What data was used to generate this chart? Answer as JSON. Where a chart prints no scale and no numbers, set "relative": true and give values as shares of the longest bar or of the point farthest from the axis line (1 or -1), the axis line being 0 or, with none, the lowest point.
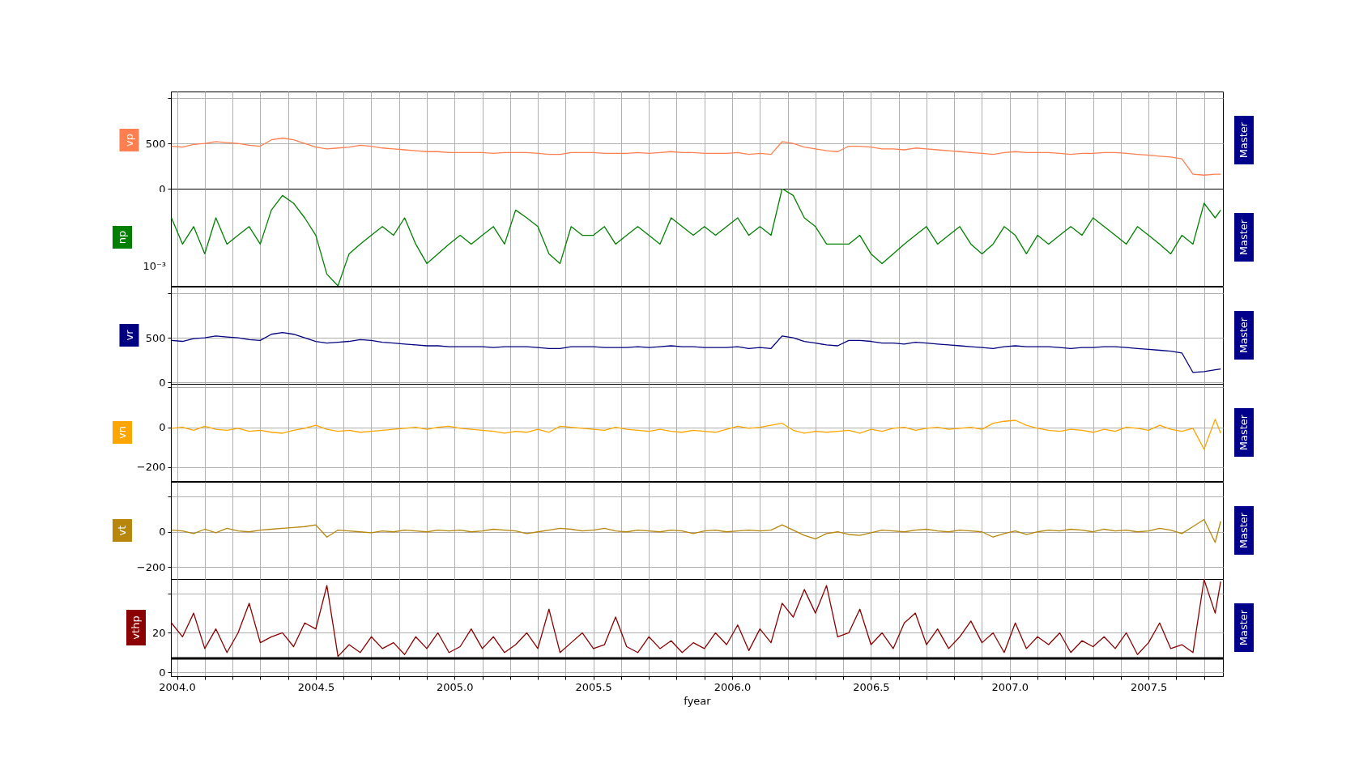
{
  "chart_data": [
    {
      "type": "line",
      "ylabel": "vp",
      "annotations": [
        "Master"
      ],
      "grid": true,
      "tick_labels": "y",
      "xlim": [
        2003.978,
        2007.768
      ],
      "ylim": [
        0,
        1075
      ],
      "yticks": [
        0,
        500,
        {
          "value": 1000,
          "label": null
        }
      ],
      "xticks": [
        {
          "value": 2004,
          "label": null
        },
        {
          "value": 2004.1,
          "label": null
        },
        {
          "value": 2004.2,
          "label": null
        },
        {
          "value": 2004.3,
          "label": null
        },
        {
          "value": 2004.4,
          "label": null
        },
        {
          "value": 2004.5,
          "label": null
        },
        {
          "value": 2004.6,
          "label": null
        },
        {
          "value": 2004.7,
          "label": null
        },
        {
          "value": 2004.8,
          "label": null
        },
        {
          "value": 2004.9,
          "label": null
        },
        {
          "value": 2005,
          "label": null
        },
        {
          "value": 2005.1,
          "label": null
        },
        {
          "value": 2005.2,
          "label": null
        },
        {
          "value": 2005.3,
          "label": null
        },
        {
          "value": 2005.4,
          "label": null
        },
        {
          "value": 2005.5,
          "label": null
        },
        {
          "value": 2005.6,
          "label": null
        },
        {
          "value": 2005.7,
          "label": null
        },
        {
          "value": 2005.8,
          "label": null
        },
        {
          "value": 2005.9,
          "label": null
        },
        {
          "value": 2006,
          "label": null
        },
        {
          "value": 2006.1,
          "label": null
        },
        {
          "value": 2006.2,
          "label": null
        },
        {
          "value": 2006.3,
          "label": null
        },
        {
          "value": 2006.4,
          "label": null
        },
        {
          "value": 2006.5,
          "label": null
        },
        {
          "value": 2006.6,
          "label": null
        },
        {
          "value": 2006.7,
          "label": null
        },
        {
          "value": 2006.8,
          "label": null
        },
        {
          "value": 2006.9,
          "label": null
        },
        {
          "value": 2007,
          "label": null
        },
        {
          "value": 2007.1,
          "label": null
        },
        {
          "value": 2007.2,
          "label": null
        },
        {
          "value": 2007.3,
          "label": null
        },
        {
          "value": 2007.4,
          "label": null
        },
        {
          "value": 2007.5,
          "label": null
        },
        {
          "value": 2007.6,
          "label": null
        },
        {
          "value": 2007.7,
          "label": null
        }
      ],
      "x": [
        2003.98,
        2004.02,
        2004.06,
        2004.1,
        2004.14,
        2004.18,
        2004.22,
        2004.26,
        2004.3,
        2004.34,
        2004.38,
        2004.42,
        2004.46,
        2004.5,
        2004.54,
        2004.58,
        2004.62,
        2004.66,
        2004.7,
        2004.74,
        2004.78,
        2004.82,
        2004.86,
        2004.9,
        2004.94,
        2004.98,
        2005.02,
        2005.06,
        2005.1,
        2005.14,
        2005.18,
        2005.22,
        2005.26,
        2005.3,
        2005.34,
        2005.38,
        2005.42,
        2005.46,
        2005.5,
        2005.54,
        2005.58,
        2005.62,
        2005.66,
        2005.7,
        2005.74,
        2005.78,
        2005.82,
        2005.86,
        2005.9,
        2005.94,
        2005.98,
        2006.02,
        2006.06,
        2006.1,
        2006.14,
        2006.18,
        2006.22,
        2006.26,
        2006.3,
        2006.34,
        2006.38,
        2006.42,
        2006.46,
        2006.5,
        2006.54,
        2006.58,
        2006.62,
        2006.66,
        2006.7,
        2006.74,
        2006.78,
        2006.82,
        2006.86,
        2006.9,
        2006.94,
        2006.98,
        2007.02,
        2007.06,
        2007.1,
        2007.14,
        2007.18,
        2007.22,
        2007.26,
        2007.3,
        2007.34,
        2007.38,
        2007.42,
        2007.46,
        2007.5,
        2007.54,
        2007.58,
        2007.62,
        2007.66,
        2007.7,
        2007.74,
        2007.76
      ],
      "series": [
        {
          "color": "#ff7f50",
          "values": [
            470,
            460,
            490,
            500,
            520,
            510,
            500,
            480,
            470,
            540,
            560,
            540,
            500,
            460,
            440,
            450,
            460,
            480,
            470,
            450,
            440,
            430,
            420,
            410,
            410,
            400,
            400,
            400,
            400,
            390,
            400,
            400,
            400,
            390,
            380,
            380,
            400,
            400,
            400,
            390,
            390,
            390,
            400,
            390,
            400,
            410,
            400,
            400,
            390,
            390,
            390,
            400,
            380,
            390,
            380,
            520,
            500,
            460,
            440,
            420,
            410,
            470,
            470,
            460,
            440,
            440,
            430,
            450,
            440,
            430,
            420,
            410,
            400,
            390,
            380,
            400,
            410,
            400,
            400,
            400,
            390,
            380,
            390,
            390,
            400,
            400,
            390,
            380,
            370,
            360,
            350,
            330,
            160,
            150,
            160,
            160
          ]
        }
      ]
    },
    {
      "type": "line",
      "ylabel": "np",
      "annotations": [
        "Master",
        "10⁻³"
      ],
      "grid": "x",
      "tick_labels": "y",
      "relative": true,
      "xlim": [
        2003.978,
        2007.768
      ],
      "xticks": [
        {
          "value": 2004,
          "label": null
        },
        {
          "value": 2004.1,
          "label": null
        },
        {
          "value": 2004.2,
          "label": null
        },
        {
          "value": 2004.3,
          "label": null
        },
        {
          "value": 2004.4,
          "label": null
        },
        {
          "value": 2004.5,
          "label": null
        },
        {
          "value": 2004.6,
          "label": null
        },
        {
          "value": 2004.7,
          "label": null
        },
        {
          "value": 2004.8,
          "label": null
        },
        {
          "value": 2004.9,
          "label": null
        },
        {
          "value": 2005,
          "label": null
        },
        {
          "value": 2005.1,
          "label": null
        },
        {
          "value": 2005.2,
          "label": null
        },
        {
          "value": 2005.3,
          "label": null
        },
        {
          "value": 2005.4,
          "label": null
        },
        {
          "value": 2005.5,
          "label": null
        },
        {
          "value": 2005.6,
          "label": null
        },
        {
          "value": 2005.7,
          "label": null
        },
        {
          "value": 2005.8,
          "label": null
        },
        {
          "value": 2005.9,
          "label": null
        },
        {
          "value": 2006,
          "label": null
        },
        {
          "value": 2006.1,
          "label": null
        },
        {
          "value": 2006.2,
          "label": null
        },
        {
          "value": 2006.3,
          "label": null
        },
        {
          "value": 2006.4,
          "label": null
        },
        {
          "value": 2006.5,
          "label": null
        },
        {
          "value": 2006.6,
          "label": null
        },
        {
          "value": 2006.7,
          "label": null
        },
        {
          "value": 2006.8,
          "label": null
        },
        {
          "value": 2006.9,
          "label": null
        },
        {
          "value": 2007,
          "label": null
        },
        {
          "value": 2007.1,
          "label": null
        },
        {
          "value": 2007.2,
          "label": null
        },
        {
          "value": 2007.3,
          "label": null
        },
        {
          "value": 2007.4,
          "label": null
        },
        {
          "value": 2007.5,
          "label": null
        },
        {
          "value": 2007.6,
          "label": null
        },
        {
          "value": 2007.7,
          "label": null
        }
      ],
      "x": [
        2003.98,
        2004.02,
        2004.06,
        2004.1,
        2004.14,
        2004.18,
        2004.22,
        2004.26,
        2004.3,
        2004.34,
        2004.38,
        2004.42,
        2004.46,
        2004.5,
        2004.54,
        2004.58,
        2004.62,
        2004.66,
        2004.7,
        2004.74,
        2004.78,
        2004.82,
        2004.86,
        2004.9,
        2004.94,
        2004.98,
        2005.02,
        2005.06,
        2005.1,
        2005.14,
        2005.18,
        2005.22,
        2005.26,
        2005.3,
        2005.34,
        2005.38,
        2005.42,
        2005.46,
        2005.5,
        2005.54,
        2005.58,
        2005.62,
        2005.66,
        2005.7,
        2005.74,
        2005.78,
        2005.82,
        2005.86,
        2005.9,
        2005.94,
        2005.98,
        2006.02,
        2006.06,
        2006.1,
        2006.14,
        2006.18,
        2006.22,
        2006.26,
        2006.3,
        2006.34,
        2006.38,
        2006.42,
        2006.46,
        2006.5,
        2006.54,
        2006.58,
        2006.62,
        2006.66,
        2006.7,
        2006.74,
        2006.78,
        2006.82,
        2006.86,
        2006.9,
        2006.94,
        2006.98,
        2007.02,
        2007.06,
        2007.1,
        2007.14,
        2007.18,
        2007.22,
        2007.26,
        2007.3,
        2007.34,
        2007.38,
        2007.42,
        2007.46,
        2007.5,
        2007.54,
        2007.58,
        2007.62,
        2007.66,
        2007.7,
        2007.74,
        2007.76
      ],
      "series": [
        {
          "color": "#008000",
          "values": [
            0.7,
            0.43,
            0.61,
            0.33,
            0.7,
            0.43,
            0.52,
            0.61,
            0.43,
            0.78,
            0.93,
            0.85,
            0.7,
            0.52,
            0.12,
            0,
            0.33,
            0.43,
            0.52,
            0.61,
            0.52,
            0.7,
            0.43,
            0.23,
            0.33,
            0.43,
            0.52,
            0.43,
            0.52,
            0.61,
            0.43,
            0.78,
            0.7,
            0.61,
            0.33,
            0.23,
            0.61,
            0.52,
            0.52,
            0.61,
            0.43,
            0.52,
            0.61,
            0.52,
            0.43,
            0.7,
            0.61,
            0.52,
            0.61,
            0.52,
            0.61,
            0.7,
            0.52,
            0.61,
            0.52,
            1,
            0.93,
            0.7,
            0.61,
            0.43,
            0.43,
            0.43,
            0.52,
            0.33,
            0.23,
            0.33,
            0.43,
            0.52,
            0.61,
            0.43,
            0.52,
            0.61,
            0.43,
            0.33,
            0.43,
            0.61,
            0.52,
            0.33,
            0.52,
            0.43,
            0.52,
            0.61,
            0.52,
            0.7,
            0.61,
            0.52,
            0.43,
            0.61,
            0.52,
            0.43,
            0.33,
            0.52,
            0.43,
            0.85,
            0.7,
            0.78
          ]
        }
      ]
    },
    {
      "type": "line",
      "ylabel": "vr",
      "annotations": [
        "Master"
      ],
      "grid": true,
      "tick_labels": "y",
      "xlim": [
        2003.978,
        2007.768
      ],
      "ylim": [
        -18,
        1075
      ],
      "yticks": [
        0,
        500,
        {
          "value": 1000,
          "label": null
        }
      ],
      "xticks": [
        {
          "value": 2004,
          "label": null
        },
        {
          "value": 2004.1,
          "label": null
        },
        {
          "value": 2004.2,
          "label": null
        },
        {
          "value": 2004.3,
          "label": null
        },
        {
          "value": 2004.4,
          "label": null
        },
        {
          "value": 2004.5,
          "label": null
        },
        {
          "value": 2004.6,
          "label": null
        },
        {
          "value": 2004.7,
          "label": null
        },
        {
          "value": 2004.8,
          "label": null
        },
        {
          "value": 2004.9,
          "label": null
        },
        {
          "value": 2005,
          "label": null
        },
        {
          "value": 2005.1,
          "label": null
        },
        {
          "value": 2005.2,
          "label": null
        },
        {
          "value": 2005.3,
          "label": null
        },
        {
          "value": 2005.4,
          "label": null
        },
        {
          "value": 2005.5,
          "label": null
        },
        {
          "value": 2005.6,
          "label": null
        },
        {
          "value": 2005.7,
          "label": null
        },
        {
          "value": 2005.8,
          "label": null
        },
        {
          "value": 2005.9,
          "label": null
        },
        {
          "value": 2006,
          "label": null
        },
        {
          "value": 2006.1,
          "label": null
        },
        {
          "value": 2006.2,
          "label": null
        },
        {
          "value": 2006.3,
          "label": null
        },
        {
          "value": 2006.4,
          "label": null
        },
        {
          "value": 2006.5,
          "label": null
        },
        {
          "value": 2006.6,
          "label": null
        },
        {
          "value": 2006.7,
          "label": null
        },
        {
          "value": 2006.8,
          "label": null
        },
        {
          "value": 2006.9,
          "label": null
        },
        {
          "value": 2007,
          "label": null
        },
        {
          "value": 2007.1,
          "label": null
        },
        {
          "value": 2007.2,
          "label": null
        },
        {
          "value": 2007.3,
          "label": null
        },
        {
          "value": 2007.4,
          "label": null
        },
        {
          "value": 2007.5,
          "label": null
        },
        {
          "value": 2007.6,
          "label": null
        },
        {
          "value": 2007.7,
          "label": null
        }
      ],
      "x": [
        2003.98,
        2004.02,
        2004.06,
        2004.1,
        2004.14,
        2004.18,
        2004.22,
        2004.26,
        2004.3,
        2004.34,
        2004.38,
        2004.42,
        2004.46,
        2004.5,
        2004.54,
        2004.58,
        2004.62,
        2004.66,
        2004.7,
        2004.74,
        2004.78,
        2004.82,
        2004.86,
        2004.9,
        2004.94,
        2004.98,
        2005.02,
        2005.06,
        2005.1,
        2005.14,
        2005.18,
        2005.22,
        2005.26,
        2005.3,
        2005.34,
        2005.38,
        2005.42,
        2005.46,
        2005.5,
        2005.54,
        2005.58,
        2005.62,
        2005.66,
        2005.7,
        2005.74,
        2005.78,
        2005.82,
        2005.86,
        2005.9,
        2005.94,
        2005.98,
        2006.02,
        2006.06,
        2006.1,
        2006.14,
        2006.18,
        2006.22,
        2006.26,
        2006.3,
        2006.34,
        2006.38,
        2006.42,
        2006.46,
        2006.5,
        2006.54,
        2006.58,
        2006.62,
        2006.66,
        2006.7,
        2006.74,
        2006.78,
        2006.82,
        2006.86,
        2006.9,
        2006.94,
        2006.98,
        2007.02,
        2007.06,
        2007.1,
        2007.14,
        2007.18,
        2007.22,
        2007.26,
        2007.3,
        2007.34,
        2007.38,
        2007.42,
        2007.46,
        2007.5,
        2007.54,
        2007.58,
        2007.62,
        2007.66,
        2007.7,
        2007.74,
        2007.76
      ],
      "series": [
        {
          "color": "#000080",
          "values": [
            470,
            460,
            490,
            500,
            520,
            510,
            500,
            480,
            470,
            540,
            560,
            540,
            500,
            460,
            440,
            450,
            460,
            480,
            470,
            450,
            440,
            430,
            420,
            410,
            410,
            400,
            400,
            400,
            400,
            390,
            400,
            400,
            400,
            390,
            380,
            380,
            400,
            400,
            400,
            390,
            390,
            390,
            400,
            390,
            400,
            410,
            400,
            400,
            390,
            390,
            390,
            400,
            380,
            390,
            380,
            520,
            500,
            460,
            440,
            420,
            410,
            470,
            470,
            460,
            440,
            440,
            430,
            450,
            440,
            430,
            420,
            410,
            400,
            390,
            380,
            400,
            410,
            400,
            400,
            400,
            390,
            380,
            390,
            390,
            400,
            400,
            390,
            380,
            370,
            360,
            350,
            330,
            110,
            120,
            140,
            150
          ]
        }
      ]
    },
    {
      "type": "line",
      "ylabel": "vn",
      "annotations": [
        "Master"
      ],
      "grid": true,
      "tick_labels": "y",
      "xlim": [
        2003.978,
        2007.768
      ],
      "ylim": [
        -270,
        218
      ],
      "yticks": [
        {
          "value": -200,
          "label": "−200"
        },
        0,
        {
          "value": 200,
          "label": null
        }
      ],
      "xticks": [
        {
          "value": 2004,
          "label": null
        },
        {
          "value": 2004.1,
          "label": null
        },
        {
          "value": 2004.2,
          "label": null
        },
        {
          "value": 2004.3,
          "label": null
        },
        {
          "value": 2004.4,
          "label": null
        },
        {
          "value": 2004.5,
          "label": null
        },
        {
          "value": 2004.6,
          "label": null
        },
        {
          "value": 2004.7,
          "label": null
        },
        {
          "value": 2004.8,
          "label": null
        },
        {
          "value": 2004.9,
          "label": null
        },
        {
          "value": 2005,
          "label": null
        },
        {
          "value": 2005.1,
          "label": null
        },
        {
          "value": 2005.2,
          "label": null
        },
        {
          "value": 2005.3,
          "label": null
        },
        {
          "value": 2005.4,
          "label": null
        },
        {
          "value": 2005.5,
          "label": null
        },
        {
          "value": 2005.6,
          "label": null
        },
        {
          "value": 2005.7,
          "label": null
        },
        {
          "value": 2005.8,
          "label": null
        },
        {
          "value": 2005.9,
          "label": null
        },
        {
          "value": 2006,
          "label": null
        },
        {
          "value": 2006.1,
          "label": null
        },
        {
          "value": 2006.2,
          "label": null
        },
        {
          "value": 2006.3,
          "label": null
        },
        {
          "value": 2006.4,
          "label": null
        },
        {
          "value": 2006.5,
          "label": null
        },
        {
          "value": 2006.6,
          "label": null
        },
        {
          "value": 2006.7,
          "label": null
        },
        {
          "value": 2006.8,
          "label": null
        },
        {
          "value": 2006.9,
          "label": null
        },
        {
          "value": 2007,
          "label": null
        },
        {
          "value": 2007.1,
          "label": null
        },
        {
          "value": 2007.2,
          "label": null
        },
        {
          "value": 2007.3,
          "label": null
        },
        {
          "value": 2007.4,
          "label": null
        },
        {
          "value": 2007.5,
          "label": null
        },
        {
          "value": 2007.6,
          "label": null
        },
        {
          "value": 2007.7,
          "label": null
        }
      ],
      "x": [
        2003.98,
        2004.02,
        2004.06,
        2004.1,
        2004.14,
        2004.18,
        2004.22,
        2004.26,
        2004.3,
        2004.34,
        2004.38,
        2004.42,
        2004.46,
        2004.5,
        2004.54,
        2004.58,
        2004.62,
        2004.66,
        2004.7,
        2004.74,
        2004.78,
        2004.82,
        2004.86,
        2004.9,
        2004.94,
        2004.98,
        2005.02,
        2005.06,
        2005.1,
        2005.14,
        2005.18,
        2005.22,
        2005.26,
        2005.3,
        2005.34,
        2005.38,
        2005.42,
        2005.46,
        2005.5,
        2005.54,
        2005.58,
        2005.62,
        2005.66,
        2005.7,
        2005.74,
        2005.78,
        2005.82,
        2005.86,
        2005.9,
        2005.94,
        2005.98,
        2006.02,
        2006.06,
        2006.1,
        2006.14,
        2006.18,
        2006.22,
        2006.26,
        2006.3,
        2006.34,
        2006.38,
        2006.42,
        2006.46,
        2006.5,
        2006.54,
        2006.58,
        2006.62,
        2006.66,
        2006.7,
        2006.74,
        2006.78,
        2006.82,
        2006.86,
        2006.9,
        2006.94,
        2006.98,
        2007.02,
        2007.06,
        2007.1,
        2007.14,
        2007.18,
        2007.22,
        2007.26,
        2007.3,
        2007.34,
        2007.38,
        2007.42,
        2007.46,
        2007.5,
        2007.54,
        2007.58,
        2007.62,
        2007.66,
        2007.7,
        2007.74,
        2007.76
      ],
      "series": [
        {
          "color": "#ffa500",
          "values": [
            -5,
            0,
            -15,
            5,
            -10,
            -15,
            -5,
            -20,
            -15,
            -25,
            -30,
            -15,
            -5,
            10,
            -10,
            -20,
            -15,
            -25,
            -20,
            -15,
            -10,
            -5,
            0,
            -10,
            0,
            5,
            -5,
            -10,
            -15,
            -20,
            -30,
            -20,
            -25,
            -10,
            -25,
            5,
            0,
            -5,
            -10,
            -15,
            0,
            -10,
            -15,
            -20,
            -10,
            -20,
            -25,
            -15,
            -20,
            -25,
            -10,
            5,
            -5,
            0,
            10,
            20,
            -15,
            -30,
            -20,
            -25,
            -20,
            -15,
            -30,
            -10,
            -20,
            -5,
            0,
            -15,
            -5,
            0,
            -10,
            -5,
            0,
            -10,
            20,
            30,
            35,
            10,
            -5,
            -15,
            -20,
            -10,
            -15,
            -25,
            -10,
            -20,
            0,
            -5,
            -15,
            10,
            -10,
            -20,
            -5,
            -110,
            40,
            -30
          ]
        }
      ]
    },
    {
      "type": "line",
      "ylabel": "vt",
      "annotations": [
        "Master"
      ],
      "grid": true,
      "tick_labels": "y",
      "xlim": [
        2003.978,
        2007.768
      ],
      "ylim": [
        -269,
        285
      ],
      "yticks": [
        {
          "value": -200,
          "label": "−200"
        },
        0,
        {
          "value": 200,
          "label": null
        }
      ],
      "xticks": [
        {
          "value": 2004,
          "label": null
        },
        {
          "value": 2004.1,
          "label": null
        },
        {
          "value": 2004.2,
          "label": null
        },
        {
          "value": 2004.3,
          "label": null
        },
        {
          "value": 2004.4,
          "label": null
        },
        {
          "value": 2004.5,
          "label": null
        },
        {
          "value": 2004.6,
          "label": null
        },
        {
          "value": 2004.7,
          "label": null
        },
        {
          "value": 2004.8,
          "label": null
        },
        {
          "value": 2004.9,
          "label": null
        },
        {
          "value": 2005,
          "label": null
        },
        {
          "value": 2005.1,
          "label": null
        },
        {
          "value": 2005.2,
          "label": null
        },
        {
          "value": 2005.3,
          "label": null
        },
        {
          "value": 2005.4,
          "label": null
        },
        {
          "value": 2005.5,
          "label": null
        },
        {
          "value": 2005.6,
          "label": null
        },
        {
          "value": 2005.7,
          "label": null
        },
        {
          "value": 2005.8,
          "label": null
        },
        {
          "value": 2005.9,
          "label": null
        },
        {
          "value": 2006,
          "label": null
        },
        {
          "value": 2006.1,
          "label": null
        },
        {
          "value": 2006.2,
          "label": null
        },
        {
          "value": 2006.3,
          "label": null
        },
        {
          "value": 2006.4,
          "label": null
        },
        {
          "value": 2006.5,
          "label": null
        },
        {
          "value": 2006.6,
          "label": null
        },
        {
          "value": 2006.7,
          "label": null
        },
        {
          "value": 2006.8,
          "label": null
        },
        {
          "value": 2006.9,
          "label": null
        },
        {
          "value": 2007,
          "label": null
        },
        {
          "value": 2007.1,
          "label": null
        },
        {
          "value": 2007.2,
          "label": null
        },
        {
          "value": 2007.3,
          "label": null
        },
        {
          "value": 2007.4,
          "label": null
        },
        {
          "value": 2007.5,
          "label": null
        },
        {
          "value": 2007.6,
          "label": null
        },
        {
          "value": 2007.7,
          "label": null
        }
      ],
      "x": [
        2003.98,
        2004.02,
        2004.06,
        2004.1,
        2004.14,
        2004.18,
        2004.22,
        2004.26,
        2004.3,
        2004.34,
        2004.38,
        2004.42,
        2004.46,
        2004.5,
        2004.54,
        2004.58,
        2004.62,
        2004.66,
        2004.7,
        2004.74,
        2004.78,
        2004.82,
        2004.86,
        2004.9,
        2004.94,
        2004.98,
        2005.02,
        2005.06,
        2005.1,
        2005.14,
        2005.18,
        2005.22,
        2005.26,
        2005.3,
        2005.34,
        2005.38,
        2005.42,
        2005.46,
        2005.5,
        2005.54,
        2005.58,
        2005.62,
        2005.66,
        2005.7,
        2005.74,
        2005.78,
        2005.82,
        2005.86,
        2005.9,
        2005.94,
        2005.98,
        2006.02,
        2006.06,
        2006.1,
        2006.14,
        2006.18,
        2006.22,
        2006.26,
        2006.3,
        2006.34,
        2006.38,
        2006.42,
        2006.46,
        2006.5,
        2006.54,
        2006.58,
        2006.62,
        2006.66,
        2006.7,
        2006.74,
        2006.78,
        2006.82,
        2006.86,
        2006.9,
        2006.94,
        2006.98,
        2007.02,
        2007.06,
        2007.1,
        2007.14,
        2007.18,
        2007.22,
        2007.26,
        2007.3,
        2007.34,
        2007.38,
        2007.42,
        2007.46,
        2007.5,
        2007.54,
        2007.58,
        2007.62,
        2007.66,
        2007.7,
        2007.74,
        2007.76
      ],
      "series": [
        {
          "color": "#b8860b",
          "values": [
            10,
            5,
            -10,
            15,
            -5,
            20,
            5,
            0,
            10,
            15,
            20,
            25,
            30,
            40,
            -30,
            10,
            5,
            0,
            -5,
            5,
            0,
            10,
            5,
            0,
            10,
            5,
            10,
            0,
            5,
            15,
            10,
            5,
            -10,
            0,
            10,
            20,
            15,
            5,
            10,
            20,
            5,
            0,
            10,
            5,
            0,
            10,
            5,
            -10,
            5,
            10,
            0,
            5,
            10,
            5,
            10,
            40,
            10,
            -20,
            -40,
            -10,
            0,
            -15,
            -20,
            -5,
            10,
            5,
            0,
            10,
            15,
            5,
            0,
            10,
            5,
            0,
            -30,
            -10,
            5,
            -15,
            0,
            10,
            5,
            15,
            10,
            0,
            15,
            5,
            10,
            0,
            5,
            20,
            10,
            -10,
            30,
            70,
            -60,
            60
          ]
        }
      ]
    },
    {
      "type": "line",
      "ylabel": "vthp",
      "xlabel": "fyear",
      "annotations": [
        "Master"
      ],
      "grid": true,
      "xlim": [
        2003.978,
        2007.768
      ],
      "ylim": [
        -2,
        47.3
      ],
      "yticks": [
        0,
        20,
        {
          "value": 40,
          "label": null
        }
      ],
      "ref_lines": [
        {
          "axis": "y",
          "value": 7,
          "color": "#000000"
        }
      ],
      "xticks": [
        {
          "value": 2004,
          "label": "2004.0"
        },
        {
          "value": 2004.1,
          "label": null
        },
        {
          "value": 2004.2,
          "label": null
        },
        {
          "value": 2004.3,
          "label": null
        },
        {
          "value": 2004.4,
          "label": null
        },
        {
          "value": 2004.5,
          "label": "2004.5"
        },
        {
          "value": 2004.6,
          "label": null
        },
        {
          "value": 2004.7,
          "label": null
        },
        {
          "value": 2004.8,
          "label": null
        },
        {
          "value": 2004.9,
          "label": null
        },
        {
          "value": 2005,
          "label": "2005.0"
        },
        {
          "value": 2005.1,
          "label": null
        },
        {
          "value": 2005.2,
          "label": null
        },
        {
          "value": 2005.3,
          "label": null
        },
        {
          "value": 2005.4,
          "label": null
        },
        {
          "value": 2005.5,
          "label": "2005.5"
        },
        {
          "value": 2005.6,
          "label": null
        },
        {
          "value": 2005.7,
          "label": null
        },
        {
          "value": 2005.8,
          "label": null
        },
        {
          "value": 2005.9,
          "label": null
        },
        {
          "value": 2006,
          "label": "2006.0"
        },
        {
          "value": 2006.1,
          "label": null
        },
        {
          "value": 2006.2,
          "label": null
        },
        {
          "value": 2006.3,
          "label": null
        },
        {
          "value": 2006.4,
          "label": null
        },
        {
          "value": 2006.5,
          "label": "2006.5"
        },
        {
          "value": 2006.6,
          "label": null
        },
        {
          "value": 2006.7,
          "label": null
        },
        {
          "value": 2006.8,
          "label": null
        },
        {
          "value": 2006.9,
          "label": null
        },
        {
          "value": 2007,
          "label": "2007.0"
        },
        {
          "value": 2007.1,
          "label": null
        },
        {
          "value": 2007.2,
          "label": null
        },
        {
          "value": 2007.3,
          "label": null
        },
        {
          "value": 2007.4,
          "label": null
        },
        {
          "value": 2007.5,
          "label": "2007.5"
        },
        {
          "value": 2007.6,
          "label": null
        },
        {
          "value": 2007.7,
          "label": null
        }
      ],
      "x": [
        2003.98,
        2004.02,
        2004.06,
        2004.1,
        2004.14,
        2004.18,
        2004.22,
        2004.26,
        2004.3,
        2004.34,
        2004.38,
        2004.42,
        2004.46,
        2004.5,
        2004.54,
        2004.58,
        2004.62,
        2004.66,
        2004.7,
        2004.74,
        2004.78,
        2004.82,
        2004.86,
        2004.9,
        2004.94,
        2004.98,
        2005.02,
        2005.06,
        2005.1,
        2005.14,
        2005.18,
        2005.22,
        2005.26,
        2005.3,
        2005.34,
        2005.38,
        2005.42,
        2005.46,
        2005.5,
        2005.54,
        2005.58,
        2005.62,
        2005.66,
        2005.7,
        2005.74,
        2005.78,
        2005.82,
        2005.86,
        2005.9,
        2005.94,
        2005.98,
        2006.02,
        2006.06,
        2006.1,
        2006.14,
        2006.18,
        2006.22,
        2006.26,
        2006.3,
        2006.34,
        2006.38,
        2006.42,
        2006.46,
        2006.5,
        2006.54,
        2006.58,
        2006.62,
        2006.66,
        2006.7,
        2006.74,
        2006.78,
        2006.82,
        2006.86,
        2006.9,
        2006.94,
        2006.98,
        2007.02,
        2007.06,
        2007.1,
        2007.14,
        2007.18,
        2007.22,
        2007.26,
        2007.3,
        2007.34,
        2007.38,
        2007.42,
        2007.46,
        2007.5,
        2007.54,
        2007.58,
        2007.62,
        2007.66,
        2007.7,
        2007.74,
        2007.76
      ],
      "series": [
        {
          "color": "#8b0000",
          "values": [
            25,
            18,
            30,
            12,
            22,
            10,
            20,
            35,
            15,
            18,
            20,
            13,
            25,
            22,
            44,
            8,
            14,
            10,
            18,
            12,
            15,
            9,
            18,
            12,
            20,
            10,
            13,
            22,
            12,
            18,
            10,
            14,
            20,
            12,
            32,
            10,
            15,
            20,
            12,
            14,
            28,
            13,
            10,
            18,
            12,
            16,
            10,
            15,
            12,
            20,
            14,
            24,
            11,
            22,
            15,
            35,
            28,
            42,
            30,
            44,
            18,
            20,
            32,
            14,
            20,
            12,
            25,
            30,
            14,
            22,
            12,
            18,
            26,
            15,
            20,
            10,
            25,
            12,
            18,
            14,
            20,
            10,
            16,
            13,
            18,
            12,
            20,
            9,
            15,
            25,
            12,
            14,
            10,
            47,
            30,
            46
          ]
        }
      ]
    }
  ]
}
